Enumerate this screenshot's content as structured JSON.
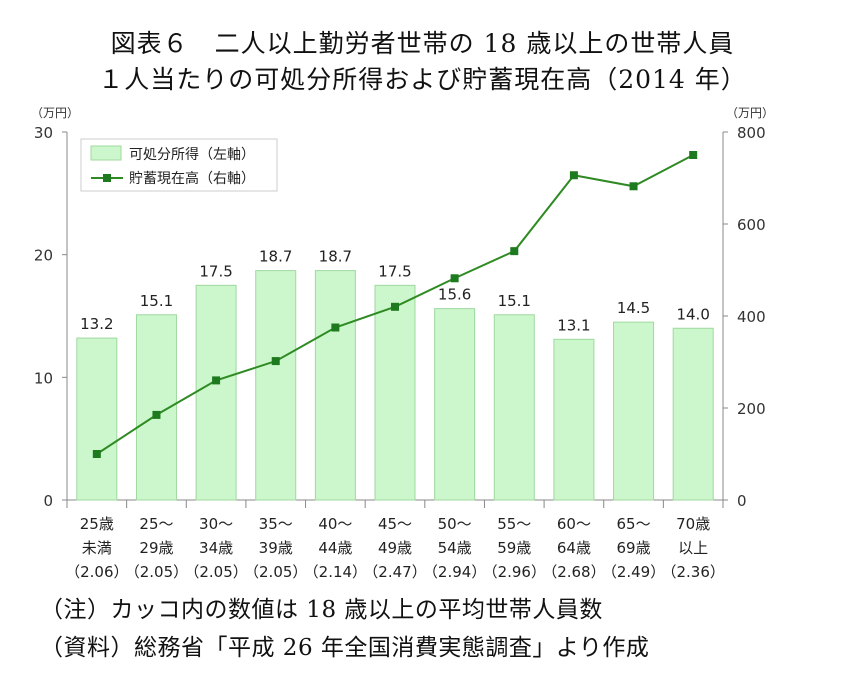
{
  "titles": {
    "line1": "図表６　二人以上勤労者世帯の 18 歳以上の世帯人員",
    "line2": "１人当たりの可処分所得および貯蓄現在高（2014 年）"
  },
  "notes": {
    "note": "（注）カッコ内の数値は 18 歳以上の平均世帯人員数",
    "source": "（資料）総務省「平成 26 年全国消費実態調査」より作成"
  },
  "colors": {
    "bar_fill": "#ccf7cc",
    "bar_stroke": "#9fd89f",
    "line": "#2e8b22",
    "marker": "#1e7a1e",
    "axis": "#888888"
  },
  "chart_data": {
    "type": "bar+line",
    "categories": [
      [
        "25歳",
        "未満",
        "（2.06）"
      ],
      [
        "25～",
        "29歳",
        "（2.05）"
      ],
      [
        "30～",
        "34歳",
        "（2.05）"
      ],
      [
        "35～",
        "39歳",
        "（2.05）"
      ],
      [
        "40～",
        "44歳",
        "（2.14）"
      ],
      [
        "45～",
        "49歳",
        "（2.47）"
      ],
      [
        "50～",
        "54歳",
        "（2.94）"
      ],
      [
        "55～",
        "59歳",
        "（2.96）"
      ],
      [
        "60～",
        "64歳",
        "（2.68）"
      ],
      [
        "65～",
        "69歳",
        "（2.49）"
      ],
      [
        "70歳",
        "以上",
        "（2.36）"
      ]
    ],
    "series": [
      {
        "name": "可処分所得（左軸）",
        "type": "bar",
        "axis": "left",
        "values": [
          13.2,
          15.1,
          17.5,
          18.7,
          18.7,
          17.5,
          15.6,
          15.1,
          13.1,
          14.5,
          14.0
        ],
        "labels": [
          "13.2",
          "15.1",
          "17.5",
          "18.7",
          "18.7",
          "17.5",
          "15.6",
          "15.1",
          "13.1",
          "14.5",
          "14.0"
        ]
      },
      {
        "name": "貯蓄現在高（右軸）",
        "type": "line",
        "axis": "right",
        "values": [
          100,
          185,
          260,
          302,
          375,
          420,
          482,
          541,
          706,
          682,
          750
        ]
      }
    ],
    "left_axis": {
      "unit": "（万円）",
      "ylim": [
        0,
        30
      ],
      "ticks": [
        "0",
        "10",
        "20",
        "30"
      ]
    },
    "right_axis": {
      "unit": "（万円）",
      "ylim": [
        0,
        800
      ],
      "ticks": [
        "0",
        "200",
        "400",
        "600",
        "800"
      ]
    },
    "legend_position": "top-left",
    "grid": false
  }
}
